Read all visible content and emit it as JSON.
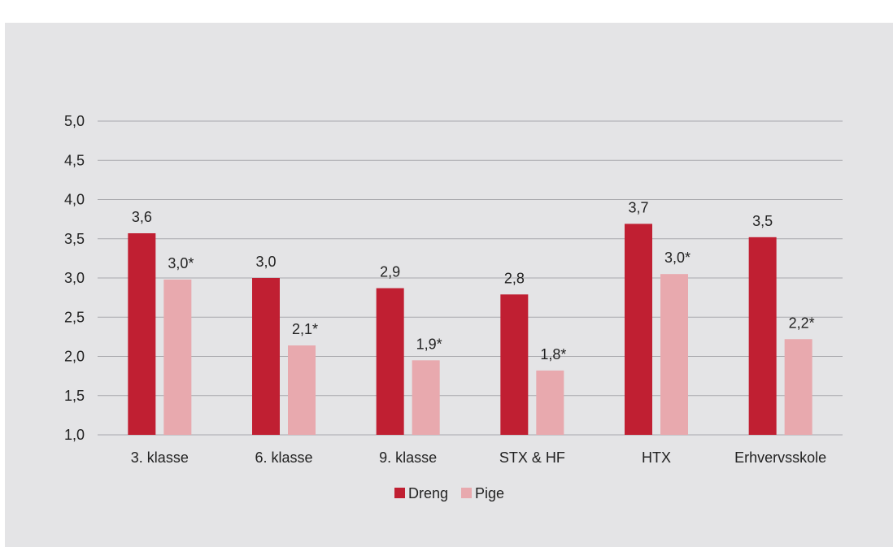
{
  "chart_data": {
    "type": "bar",
    "title": "",
    "xlabel": "",
    "ylabel": "",
    "ylim": [
      1.0,
      5.0
    ],
    "yticks": [
      "1,0",
      "1,5",
      "2,0",
      "2,5",
      "3,0",
      "3,5",
      "4,0",
      "4,5",
      "5,0"
    ],
    "ytick_values": [
      1.0,
      1.5,
      2.0,
      2.5,
      3.0,
      3.5,
      4.0,
      4.5,
      5.0
    ],
    "grid": true,
    "legend_position": "bottom",
    "categories": [
      "3. klasse",
      "6. klasse",
      "9. klasse",
      "STX & HF",
      "HTX",
      "Erhvervsskole"
    ],
    "series": [
      {
        "name": "Dreng",
        "color": "#c01f32",
        "values": [
          3.57,
          3.0,
          2.87,
          2.79,
          3.69,
          3.52
        ],
        "labels": [
          "3,6",
          "3,0",
          "2,9",
          "2,8",
          "3,7",
          "3,5"
        ]
      },
      {
        "name": "Pige",
        "color": "#e8a9ae",
        "values": [
          2.98,
          2.14,
          1.95,
          1.82,
          3.05,
          2.22
        ],
        "labels": [
          "3,0*",
          "2,1*",
          "1,9*",
          "1,8*",
          "3,0*",
          "2,2*"
        ]
      }
    ]
  }
}
